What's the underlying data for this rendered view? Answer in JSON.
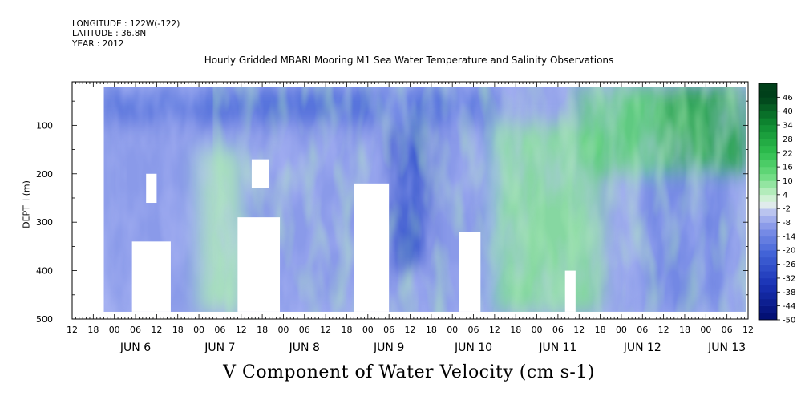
{
  "header": {
    "longitude": "LONGITUDE : 122W(-122)",
    "latitude": "LATITUDE : 36.8N",
    "year": "YEAR : 2012",
    "title": "Hourly Gridded MBARI Mooring M1 Sea Water Temperature and Salinity Observations"
  },
  "chart_data": {
    "type": "heatmap",
    "title": "Hourly Gridded MBARI Mooring M1 Sea Water Temperature and Salinity Observations",
    "xlabel": "V Component of Water Velocity (cm s-1)",
    "ylabel": "DEPTH (m)",
    "x_start": "2012-06-05 12:00",
    "x_end": "2012-06-13 12:00",
    "xlim_hours": [
      0,
      192
    ],
    "ylim": [
      500,
      10
    ],
    "y_reversed": true,
    "y_ticks": [
      100,
      200,
      300,
      400,
      500
    ],
    "hour_ticks": [
      "12",
      "18",
      "00",
      "06",
      "12",
      "18",
      "00",
      "06",
      "12",
      "18",
      "00",
      "06",
      "12",
      "18",
      "00",
      "06",
      "12",
      "18",
      "00",
      "06",
      "12",
      "18",
      "00",
      "06",
      "12",
      "18",
      "00",
      "06",
      "12",
      "18",
      "00",
      "06",
      "12"
    ],
    "day_labels": [
      "JUN  6",
      "JUN  7",
      "JUN  8",
      "JUN  9",
      "JUN 10",
      "JUN 11",
      "JUN 12",
      "JUN 13"
    ],
    "data_start_hours": 9,
    "data_depth_range": [
      20,
      485
    ],
    "colorbar": {
      "levels": [
        -50,
        -44,
        -38,
        -32,
        -26,
        -20,
        -14,
        -8,
        -2,
        4,
        10,
        16,
        22,
        28,
        34,
        40,
        46
      ],
      "labels": [
        "46",
        "40",
        "34",
        "28",
        "22",
        "16",
        "10",
        "4",
        "-2",
        "-8",
        "-14",
        "-20",
        "-26",
        "-32",
        "-38",
        "-44",
        "-50"
      ],
      "colors": {
        "strong_negative": "#000c6e",
        "mid_negative": "#3f61d6",
        "weak_negative": "#b4bdf0",
        "near_zero": "#e4f5e4",
        "weak_positive": "#9fe6a8",
        "mid_positive": "#2fbf4f",
        "strong_positive": "#00401a"
      }
    },
    "field_summary": [
      {
        "period": "Jun 5 21h - Jun 10 12h",
        "depth": "20-100 m",
        "v": -20
      },
      {
        "period": "Jun 5 21h - Jun 10 12h",
        "depth": "100-485 m",
        "v": -10
      },
      {
        "period": "Jun 7 00h - Jun 7 12h",
        "depth": "150-485 m",
        "v": 6
      },
      {
        "period": "Jun 9 06h - Jun 9 18h",
        "depth": "100-400 m",
        "v": -26
      },
      {
        "period": "Jun 10 12h - Jun 11 18h",
        "depth": "100-485 m",
        "v": 10
      },
      {
        "period": "Jun 11 12h - Jun 12 12h",
        "depth": "20-200 m",
        "v": 16
      },
      {
        "period": "Jun 12 12h - Jun 13 12h",
        "depth": "20-200 m",
        "v": 28
      },
      {
        "period": "Jun 12 06h - Jun 13 06h",
        "depth": "200-485 m",
        "v": -14
      }
    ],
    "missing_data_regions": [
      {
        "t_start": 17,
        "t_end": 28,
        "d_start": 340,
        "d_end": 485
      },
      {
        "t_start": 21,
        "t_end": 24,
        "d_start": 200,
        "d_end": 260
      },
      {
        "t_start": 47,
        "t_end": 59,
        "d_start": 290,
        "d_end": 485
      },
      {
        "t_start": 51,
        "t_end": 56,
        "d_start": 170,
        "d_end": 230
      },
      {
        "t_start": 80,
        "t_end": 90,
        "d_start": 220,
        "d_end": 485
      },
      {
        "t_start": 110,
        "t_end": 116,
        "d_start": 320,
        "d_end": 485
      },
      {
        "t_start": 140,
        "t_end": 143,
        "d_start": 400,
        "d_end": 485
      }
    ]
  }
}
